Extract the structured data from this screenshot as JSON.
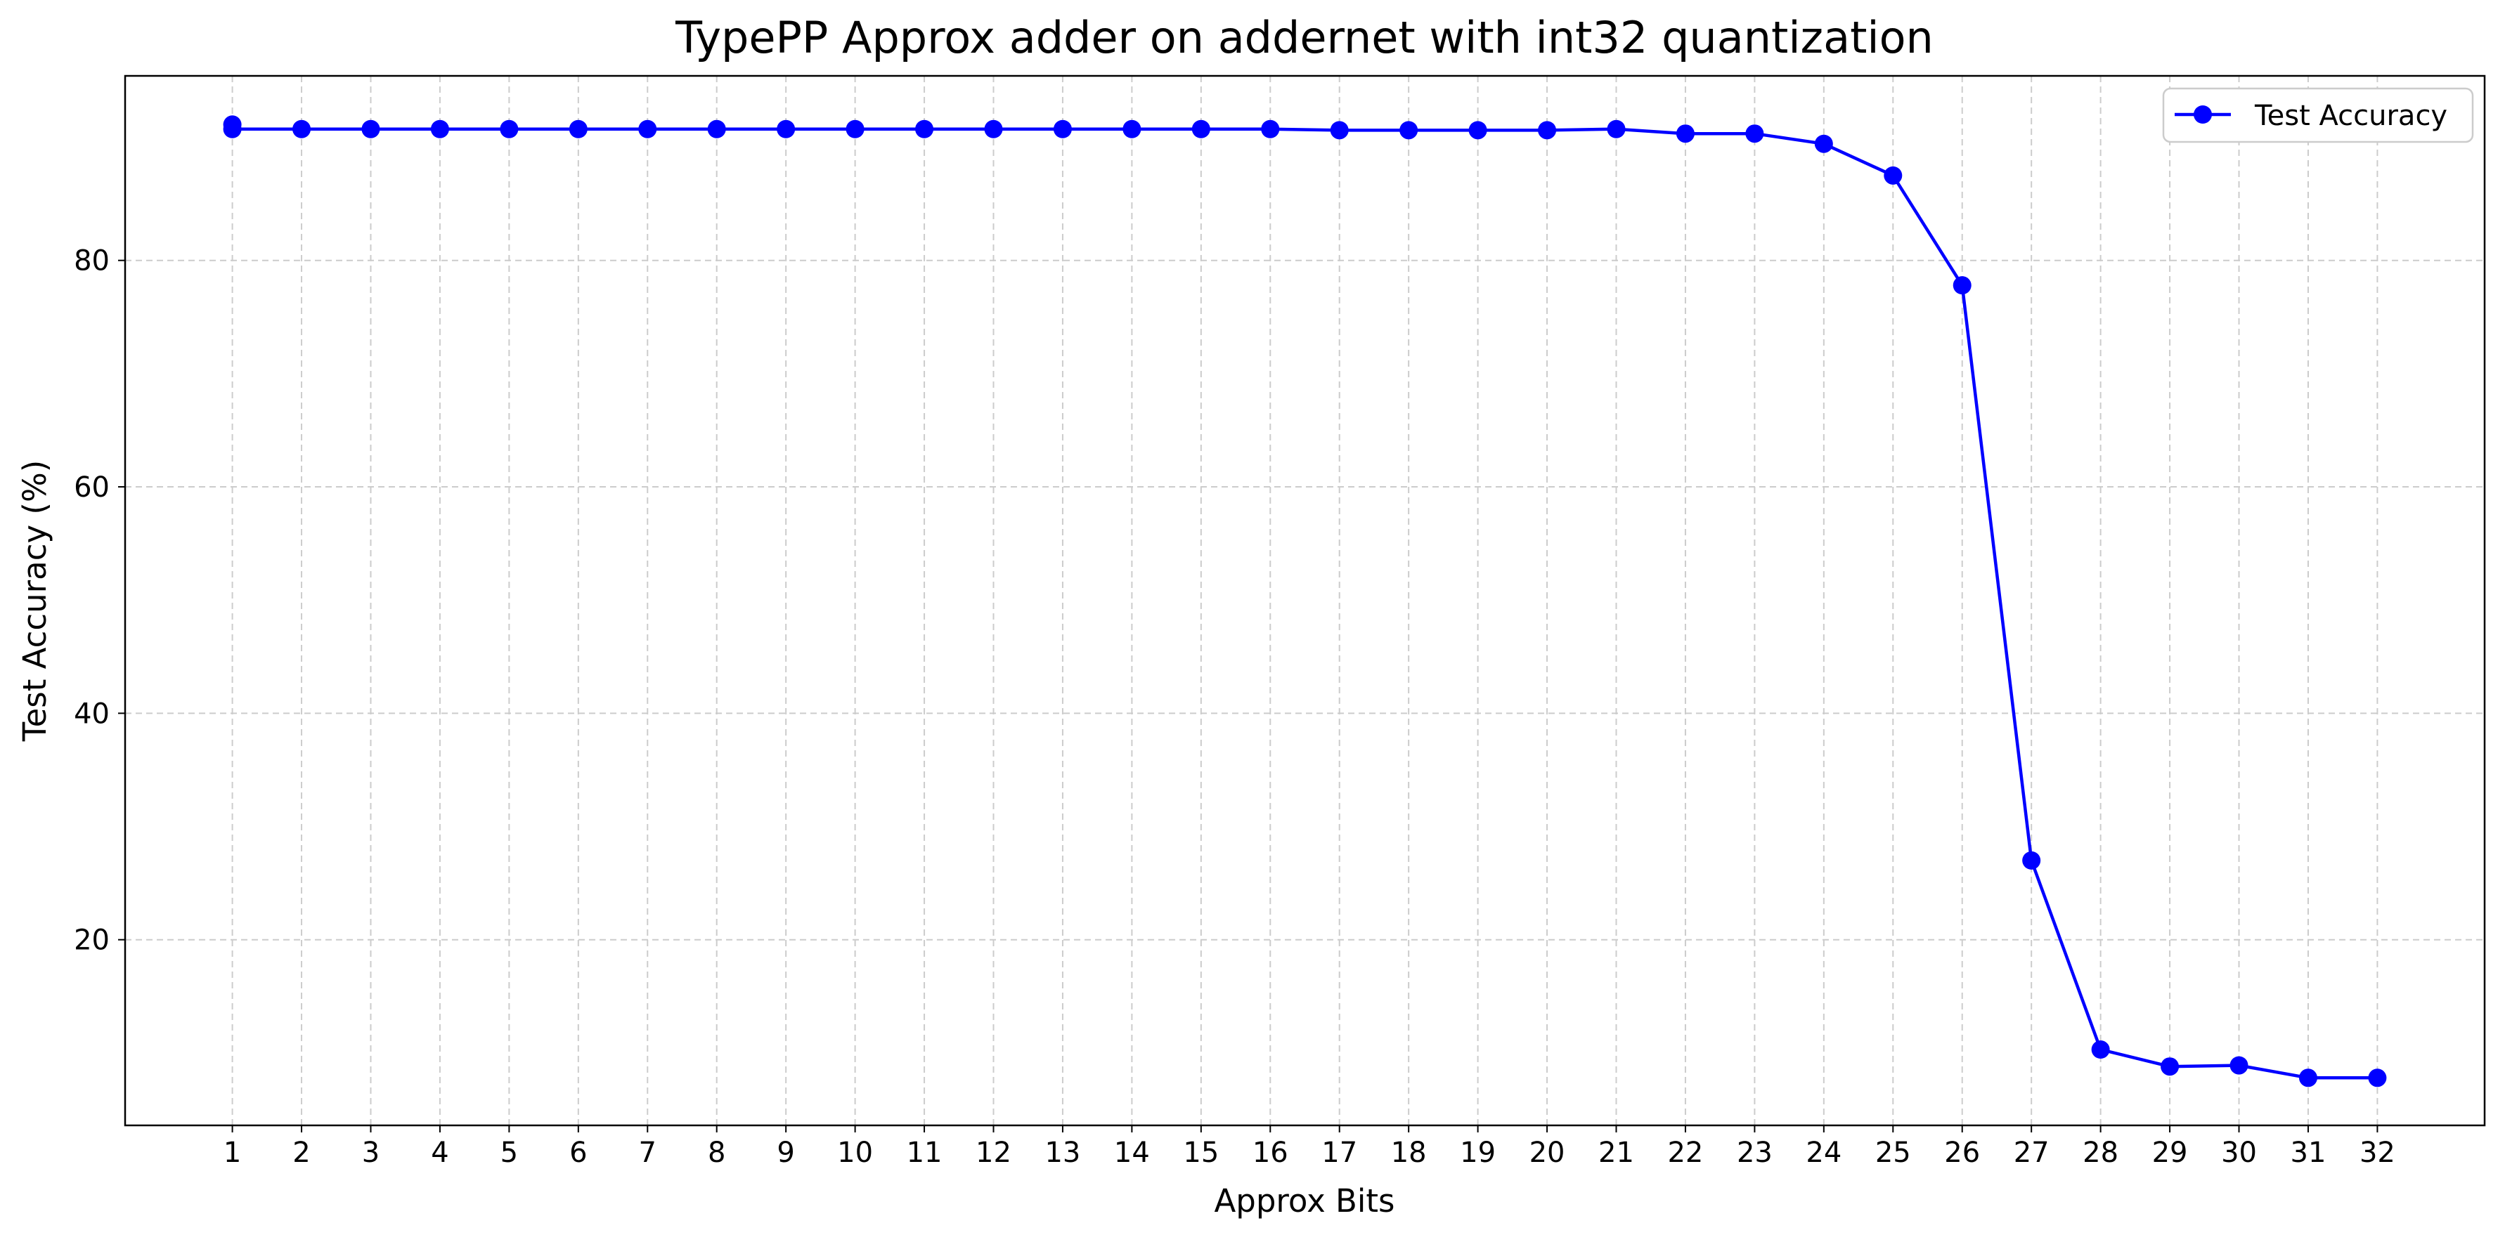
{
  "chart_data": {
    "type": "line",
    "title": "TypePP Approx adder on addernet with int32 quantization",
    "xlabel": "Approx Bits",
    "ylabel": "Test Accuracy (%)",
    "x": [
      1,
      2,
      3,
      4,
      5,
      6,
      7,
      8,
      9,
      10,
      11,
      12,
      13,
      14,
      15,
      16,
      17,
      18,
      19,
      20,
      21,
      22,
      23,
      24,
      25,
      26,
      27,
      28,
      29,
      30,
      31,
      32
    ],
    "xticks": [
      "1",
      "2",
      "3",
      "4",
      "5",
      "6",
      "7",
      "8",
      "9",
      "10",
      "11",
      "12",
      "13",
      "14",
      "15",
      "16",
      "17",
      "18",
      "19",
      "20",
      "21",
      "22",
      "23",
      "24",
      "25",
      "26",
      "27",
      "28",
      "29",
      "30",
      "31",
      "32"
    ],
    "yticks": [
      20,
      40,
      60,
      80
    ],
    "xlim": [
      -0.55,
      33.55
    ],
    "ylim": [
      3.6,
      96.3
    ],
    "grid": true,
    "legend_position": "upper-right",
    "series": [
      {
        "name": "Test Accuracy",
        "color": "#0000ff",
        "marker": "circle",
        "values": [
          91.6,
          91.6,
          91.6,
          91.6,
          91.6,
          91.6,
          91.6,
          91.6,
          91.6,
          91.6,
          91.6,
          91.6,
          91.6,
          91.6,
          91.6,
          91.6,
          91.5,
          91.5,
          91.5,
          91.5,
          91.6,
          91.2,
          91.2,
          90.3,
          87.5,
          77.8,
          27.0,
          10.3,
          8.8,
          8.9,
          7.8,
          7.8
        ]
      }
    ],
    "extra_points": [
      {
        "x": 1,
        "y": 92.0
      }
    ]
  }
}
